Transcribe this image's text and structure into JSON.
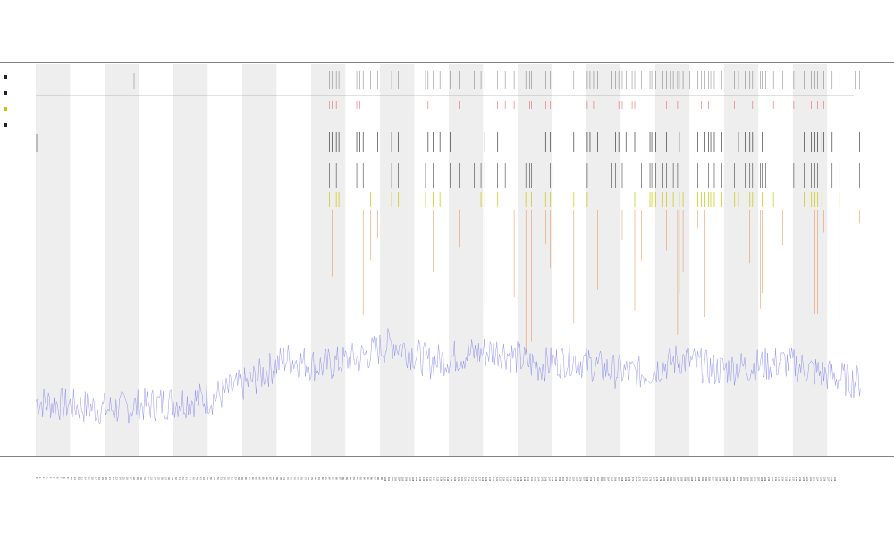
{
  "chart_data": {
    "type": "line",
    "title": "",
    "subtitle_1": "",
    "subtitle_2": "",
    "xlabel": "",
    "ylabel": "",
    "grid": false,
    "legend_position": "top-left",
    "x": {
      "start": 0,
      "count": 240
    },
    "bands": {
      "start_index": 0,
      "period": 20,
      "shaded_length": 10
    },
    "series": [
      {
        "color": "#6a6af0",
        "kind": "baseline-signal",
        "values_profile": [
          0.07,
          0.06,
          0.05,
          0.06,
          0.07,
          0.08,
          0.12,
          0.18,
          0.16,
          0.18,
          0.22,
          0.17,
          0.19,
          0.2,
          0.16,
          0.18,
          0.15,
          0.14,
          0.18,
          0.15,
          0.16,
          0.17,
          0.14,
          0.12
        ]
      },
      {
        "color": "#e07020",
        "kind": "spikes"
      },
      {
        "color": "#c8c800",
        "kind": "marker-row"
      },
      {
        "color": "#222222",
        "kind": "marker-row"
      },
      {
        "color": "#e05050",
        "kind": "marker-row"
      }
    ],
    "colors": {
      "band": "#eeeeee",
      "axis": "#333333",
      "signal": "#6a6af0",
      "spike": "#e07020",
      "yellow": "#c8c800",
      "black": "#222222",
      "red": "#e05050"
    }
  }
}
